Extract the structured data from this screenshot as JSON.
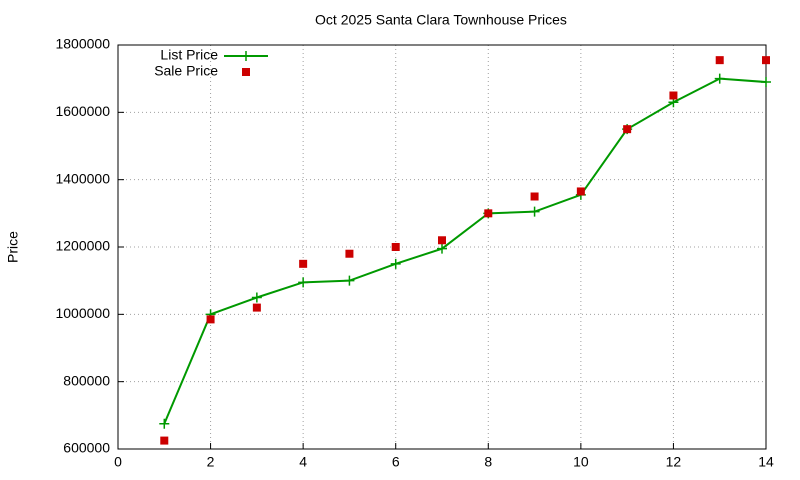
{
  "chart_data": {
    "type": "line",
    "title": "Oct 2025 Santa Clara Townhouse Prices",
    "y_label": "Price",
    "x": [
      1,
      2,
      3,
      4,
      5,
      6,
      7,
      8,
      9,
      10,
      11,
      12,
      13,
      14
    ],
    "series": [
      {
        "name": "List Price",
        "color": "#009900",
        "style": "linespoints",
        "values": [
          675000,
          1000000,
          1050000,
          1095000,
          1100000,
          1150000,
          1195000,
          1300000,
          1305000,
          1355000,
          1550000,
          1630000,
          1700000,
          1690000
        ]
      },
      {
        "name": "Sale Price",
        "color": "#cc0000",
        "style": "points",
        "values": [
          625000,
          985000,
          1020000,
          1150000,
          1180000,
          1200000,
          1220000,
          1300000,
          1350000,
          1365000,
          1550000,
          1650000,
          1755000,
          1755000
        ]
      }
    ],
    "xlim": [
      0,
      14
    ],
    "xticks": [
      0,
      2,
      4,
      6,
      8,
      10,
      12,
      14
    ],
    "ylim": [
      600000,
      1800000
    ],
    "yticks": [
      600000,
      800000,
      1000000,
      1200000,
      1400000,
      1600000,
      1800000
    ],
    "grid": true,
    "legend": "top-left"
  }
}
